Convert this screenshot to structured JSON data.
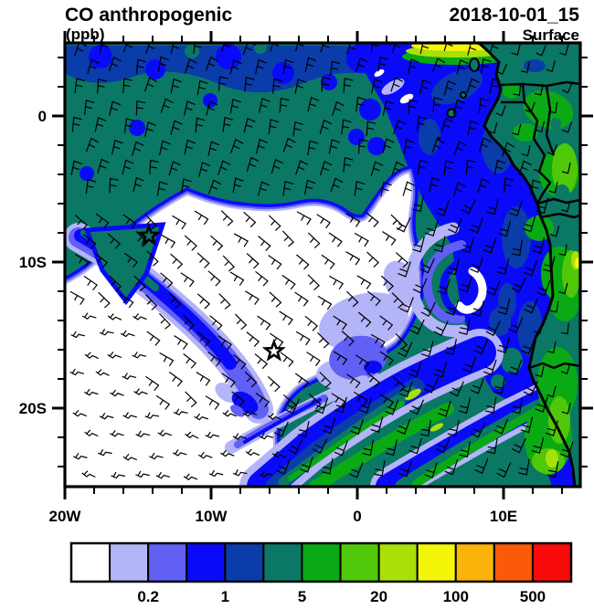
{
  "header": {
    "title": "CO anthropogenic",
    "units": "(ppb)",
    "datetime": "2018-10-01_15",
    "level": "Surface"
  },
  "axes": {
    "x_tick_labels": [
      "20W",
      "10W",
      "0",
      "10E"
    ],
    "y_tick_labels": [
      "0",
      "10S",
      "20S"
    ]
  },
  "chart_data": {
    "type": "heatmap",
    "title": "CO anthropogenic",
    "units": "ppb",
    "datetime": "2018-10-01_15",
    "level": "Surface",
    "projection": "cylindrical-equidistant",
    "lon_range_deg": [
      -20,
      15.25
    ],
    "lat_range_deg": [
      5,
      -25.4
    ],
    "x_ticks": [
      {
        "label": "20W",
        "deg": -20
      },
      {
        "label": "10W",
        "deg": -10
      },
      {
        "label": "0",
        "deg": 0
      },
      {
        "label": "10E",
        "deg": 10
      }
    ],
    "y_ticks": [
      {
        "label": "0",
        "deg": 0
      },
      {
        "label": "10S",
        "deg": -10
      },
      {
        "label": "20S",
        "deg": -20
      }
    ],
    "x_minor_tick_degs": [
      -18,
      -16,
      -14,
      -12,
      -8,
      -6,
      -4,
      -2,
      2,
      4,
      6,
      8,
      12,
      14
    ],
    "y_minor_tick_degs": [
      4,
      2,
      -2,
      -4,
      -6,
      -8,
      -12,
      -14,
      -16,
      -18,
      -22,
      -24
    ],
    "colorbar": {
      "levels_ppb": [
        0.1,
        0.2,
        0.5,
        1,
        2,
        5,
        10,
        20,
        50,
        100,
        200,
        500
      ],
      "tick_labels": [
        "0.2",
        "1",
        "5",
        "20",
        "100",
        "500"
      ],
      "label_boundary_indices": [
        2,
        4,
        6,
        8,
        10,
        12
      ],
      "colors": [
        "#FFFFFF",
        "#B4B4F8",
        "#6060F4",
        "#0A0AFA",
        "#0A3CAA",
        "#0A7864",
        "#0AAA14",
        "#50C80A",
        "#AAE00A",
        "#F5F50A",
        "#FAB40A",
        "#FA5A0A",
        "#FA0A0A"
      ]
    },
    "markers": [
      {
        "name": "island-star-marker",
        "lon_deg": -14.25,
        "lat_deg": -8.2
      },
      {
        "name": "island-star-marker",
        "lon_deg": -5.7,
        "lat_deg": -16.1
      }
    ],
    "wind_overlay": "wind barbs",
    "field_regions": [
      {
        "area": "northwest ocean mass",
        "value_ppb": "2-5"
      },
      {
        "area": "northern boundary band",
        "value_ppb": "1-2"
      },
      {
        "area": "central and southwest South Atlantic",
        "value_ppb": "<0.1"
      },
      {
        "area": "coastal outflow plume off Gabon-Angola",
        "value_ppb": "0.5-2"
      },
      {
        "area": "cyclonic eddy near 7W 11S",
        "value_ppb": "0.1-0.5"
      },
      {
        "area": "southeast diagonal filaments",
        "value_ppb": "1-20"
      },
      {
        "area": "central African land",
        "value_ppb": "2-20"
      },
      {
        "area": "coastal hotspot near top (Douala region)",
        "value_ppb": "50-100"
      }
    ]
  }
}
